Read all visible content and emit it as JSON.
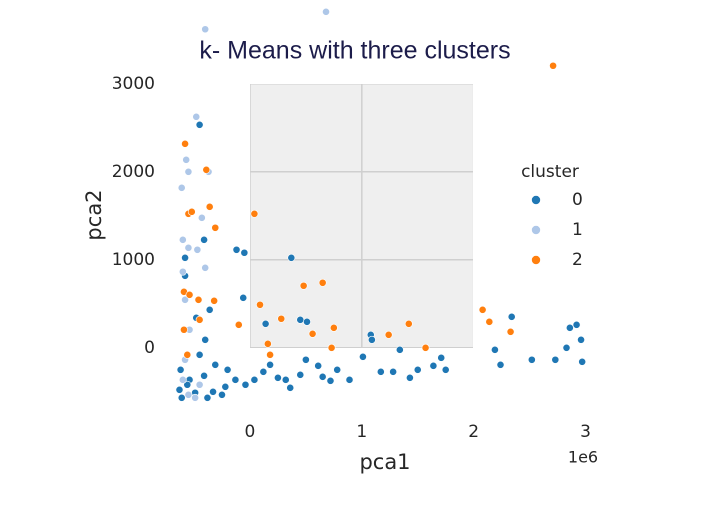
{
  "chart_data": {
    "type": "scatter",
    "title": "k-  Means with three clusters",
    "xlabel": "pca1",
    "ylabel": "pca2",
    "x_offset_label": "1e6",
    "xlim": [
      -0.67,
      3.04
    ],
    "ylim": [
      -650,
      3850
    ],
    "xticks": [
      0,
      1,
      2,
      3
    ],
    "yticks": [
      0,
      1000,
      2000,
      3000
    ],
    "grid": true,
    "legend_title": "cluster",
    "legend_position": "right",
    "series": [
      {
        "name": "0",
        "color": "#1f77b4",
        "x": [
          -0.45,
          -0.58,
          -0.41,
          -0.58,
          -0.12,
          -0.05,
          0.37,
          -0.06,
          0.14,
          0.45,
          0.51,
          1.08,
          1.09,
          1.34,
          1.01,
          1.71,
          1.64,
          1.5,
          1.17,
          1.75,
          2.19,
          2.24,
          2.34,
          2.52,
          2.73,
          2.83,
          2.86,
          2.92,
          2.96,
          2.97,
          0.5,
          0.65,
          0.72,
          0.45,
          0.32,
          0.12,
          -0.04,
          -0.13,
          -0.22,
          -0.33,
          -0.49,
          -0.63,
          -0.61,
          -0.54,
          -0.41,
          -0.31,
          -0.4,
          -0.48,
          -0.36,
          -0.45,
          -0.62,
          -0.2,
          0.04,
          0.25,
          0.89,
          0.78,
          1.28,
          1.43,
          0.61,
          0.18,
          0.36,
          -0.25,
          -0.56,
          -0.38
        ],
        "values": [
          2534,
          1023,
          1227,
          818,
          1114,
          1080,
          1023,
          568,
          273,
          318,
          295,
          148,
          91,
          -23,
          -102,
          -114,
          -205,
          -250,
          -273,
          -250,
          -23,
          -193,
          352,
          -136,
          -136,
          0,
          227,
          261,
          91,
          -159,
          -136,
          -330,
          -375,
          -307,
          -364,
          -273,
          -420,
          -364,
          -443,
          -500,
          -511,
          -477,
          -568,
          -364,
          -318,
          -193,
          91,
          341,
          432,
          -80,
          -250,
          -250,
          -364,
          -341,
          -364,
          -250,
          -273,
          -341,
          -205,
          -193,
          -455,
          -534,
          -420,
          -568
        ]
      },
      {
        "name": "1",
        "color": "#aec7e8",
        "x": [
          -0.4,
          -0.48,
          -0.57,
          -0.55,
          -0.37,
          -0.61,
          -0.6,
          -0.55,
          -0.47,
          -0.4,
          -0.6,
          -0.58,
          -0.6,
          -0.55,
          -0.49,
          -0.45,
          -0.58,
          -0.54,
          -0.43,
          0.68
        ],
        "values": [
          3620,
          2625,
          2136,
          2000,
          2000,
          1818,
          1227,
          1136,
          1114,
          909,
          864,
          545,
          -364,
          -534,
          -568,
          -420,
          -136,
          205,
          1477,
          3818
        ]
      },
      {
        "name": "2",
        "color": "#ff7f0e",
        "x": [
          2.71,
          -0.58,
          -0.55,
          -0.52,
          -0.36,
          -0.31,
          0.04,
          -0.59,
          -0.54,
          -0.46,
          -0.32,
          0.09,
          -0.1,
          0.48,
          0.65,
          0.16,
          0.28,
          0.56,
          0.75,
          1.42,
          1.24,
          2.08,
          2.14,
          2.33,
          1.57,
          0.73,
          -0.59,
          -0.45,
          0.18,
          -0.56,
          -0.39
        ],
        "values": [
          3205,
          2318,
          1523,
          1545,
          1602,
          1364,
          1523,
          636,
          602,
          545,
          534,
          489,
          261,
          705,
          739,
          45,
          330,
          159,
          227,
          273,
          148,
          432,
          295,
          182,
          0,
          0,
          205,
          318,
          -80,
          -80,
          2023
        ]
      }
    ]
  }
}
